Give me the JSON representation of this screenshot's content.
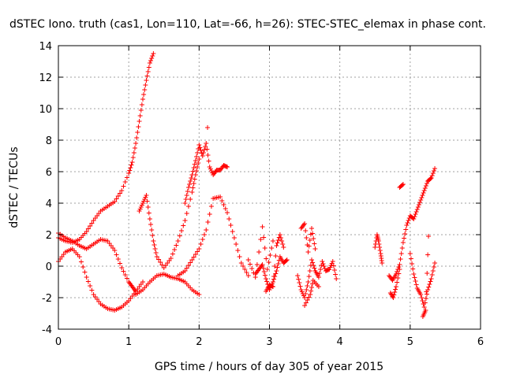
{
  "chart_data": {
    "type": "scatter",
    "title": "dSTEC Iono. truth (cas1, Lon=110, Lat=-66, h=26): STEC-STEC_elemax in phase cont.",
    "xlabel": "GPS time / hours of day 305 of year 2015",
    "ylabel": "dSTEC  / TECUs",
    "xlim": [
      0,
      6
    ],
    "ylim": [
      -4,
      14
    ],
    "xticks": [
      0,
      1,
      2,
      3,
      4,
      5,
      6
    ],
    "yticks": [
      -4,
      -2,
      0,
      2,
      4,
      6,
      8,
      10,
      12,
      14
    ],
    "grid": true,
    "marker": "+",
    "color": "#ff0000",
    "tracks": [
      {
        "x": [
          0.0,
          0.1,
          0.2,
          0.3,
          0.4,
          0.5,
          0.6,
          0.7,
          0.8,
          0.9,
          1.0,
          1.05,
          1.1,
          1.15,
          1.2,
          1.25,
          1.3,
          1.35
        ],
        "y": [
          1.8,
          1.6,
          1.5,
          1.7,
          2.2,
          2.9,
          3.5,
          3.8,
          4.1,
          4.8,
          5.9,
          6.6,
          7.8,
          9.2,
          10.6,
          11.8,
          12.9,
          13.5
        ]
      },
      {
        "x": [
          0.0,
          0.1,
          0.2,
          0.3,
          0.4,
          0.5,
          0.6,
          0.7,
          0.8,
          0.9,
          1.0,
          1.1,
          1.2
        ],
        "y": [
          0.3,
          0.9,
          1.1,
          0.6,
          -0.7,
          -1.8,
          -2.4,
          -2.7,
          -2.8,
          -2.6,
          -2.2,
          -1.6,
          -1.0
        ]
      },
      {
        "x": [
          0.0,
          0.1,
          0.2,
          0.3,
          0.4,
          0.5,
          0.6,
          0.7,
          0.8,
          0.9,
          1.0,
          1.05,
          1.1
        ],
        "y": [
          2.1,
          1.8,
          1.6,
          1.3,
          1.1,
          1.4,
          1.7,
          1.6,
          1.0,
          -0.1,
          -1.0,
          -1.3,
          -1.6
        ]
      },
      {
        "x": [
          1.1,
          1.2,
          1.3,
          1.4,
          1.5,
          1.6,
          1.7,
          1.8,
          1.9,
          2.0
        ],
        "y": [
          -1.8,
          -1.5,
          -1.0,
          -0.6,
          -0.5,
          -0.7,
          -0.8,
          -1.0,
          -1.5,
          -1.8
        ]
      },
      {
        "x": [
          1.15,
          1.2,
          1.25,
          1.3,
          1.35,
          1.4,
          1.5,
          1.6,
          1.7,
          1.8,
          1.9,
          1.95,
          2.0
        ],
        "y": [
          3.5,
          4.0,
          4.5,
          3.0,
          1.6,
          0.6,
          -0.1,
          0.5,
          1.6,
          2.9,
          4.7,
          5.8,
          6.8
        ]
      },
      {
        "x": [
          1.8,
          1.85,
          1.9,
          1.95,
          2.0,
          2.05,
          2.1,
          2.15,
          2.2,
          2.25,
          2.3,
          2.35,
          2.4
        ],
        "y": [
          4.0,
          5.0,
          5.8,
          6.7,
          7.7,
          7.0,
          7.8,
          6.3,
          5.8,
          6.1,
          6.1,
          6.4,
          6.3
        ]
      },
      {
        "x": [
          1.7,
          1.8,
          1.9,
          2.0,
          2.1,
          2.2,
          2.3,
          2.4,
          2.5,
          2.6,
          2.7
        ],
        "y": [
          -0.6,
          -0.3,
          0.4,
          1.1,
          2.3,
          4.3,
          4.4,
          3.4,
          1.8,
          0.2,
          -0.6
        ]
      },
      {
        "x": [
          2.12
        ],
        "y": [
          8.8
        ]
      },
      {
        "x": [
          2.8,
          2.85,
          2.9,
          2.95,
          3.0,
          3.05,
          3.1,
          3.15,
          3.2,
          3.25
        ],
        "y": [
          -0.5,
          -0.2,
          0.1,
          -0.8,
          -1.5,
          -1.0,
          -0.3,
          0.6,
          0.2,
          0.4
        ]
      },
      {
        "x": [
          2.95,
          3.0,
          3.05,
          3.1,
          3.15,
          3.2
        ],
        "y": [
          -1.6,
          -1.2,
          -1.3,
          1.3,
          2.0,
          1.2
        ]
      },
      {
        "x": [
          2.7,
          2.8,
          2.9,
          2.97,
          3.05
        ],
        "y": [
          0.4,
          -0.7,
          2.5,
          -0.2,
          1.6
        ]
      },
      {
        "x": [
          3.4,
          3.45,
          3.5,
          3.55,
          3.6,
          3.65,
          3.7,
          3.75,
          3.8,
          3.85,
          3.9,
          3.95
        ],
        "y": [
          -0.6,
          -1.5,
          -2.0,
          -1.0,
          0.4,
          -0.3,
          -0.7,
          0.3,
          -0.3,
          -0.2,
          0.3,
          -0.8
        ]
      },
      {
        "x": [
          3.45,
          3.5,
          3.55,
          3.6,
          3.65
        ],
        "y": [
          2.4,
          2.7,
          0.9,
          2.4,
          1.1
        ]
      },
      {
        "x": [
          3.5,
          3.58,
          3.62,
          3.7
        ],
        "y": [
          -2.5,
          -1.8,
          -0.9,
          -1.3
        ]
      },
      {
        "x": [
          4.5,
          4.53,
          4.55,
          4.58,
          4.6
        ],
        "y": [
          1.2,
          2.0,
          1.6,
          0.8,
          0.2
        ]
      },
      {
        "x": [
          4.7,
          4.75,
          4.8,
          4.85,
          4.9,
          4.95,
          5.0,
          5.05,
          5.1,
          5.15,
          5.2,
          5.25,
          5.3,
          5.35
        ],
        "y": [
          -0.6,
          -0.9,
          -0.5,
          0.1,
          1.5,
          2.6,
          3.2,
          3.0,
          3.6,
          4.2,
          4.8,
          5.4,
          5.6,
          6.2
        ]
      },
      {
        "x": [
          4.72,
          4.76,
          4.8,
          4.85
        ],
        "y": [
          -1.7,
          -2.0,
          -1.3,
          -0.2
        ]
      },
      {
        "x": [
          4.85,
          4.9
        ],
        "y": [
          5.0,
          5.2
        ]
      },
      {
        "x": [
          5.0,
          5.05,
          5.1,
          5.15,
          5.2,
          5.25,
          5.3,
          5.35
        ],
        "y": [
          0.8,
          -0.5,
          -1.4,
          -1.8,
          -2.6,
          -1.5,
          -0.8,
          0.2
        ]
      },
      {
        "x": [
          5.18,
          5.22,
          5.26
        ],
        "y": [
          -3.2,
          -2.8,
          1.9
        ]
      }
    ]
  }
}
